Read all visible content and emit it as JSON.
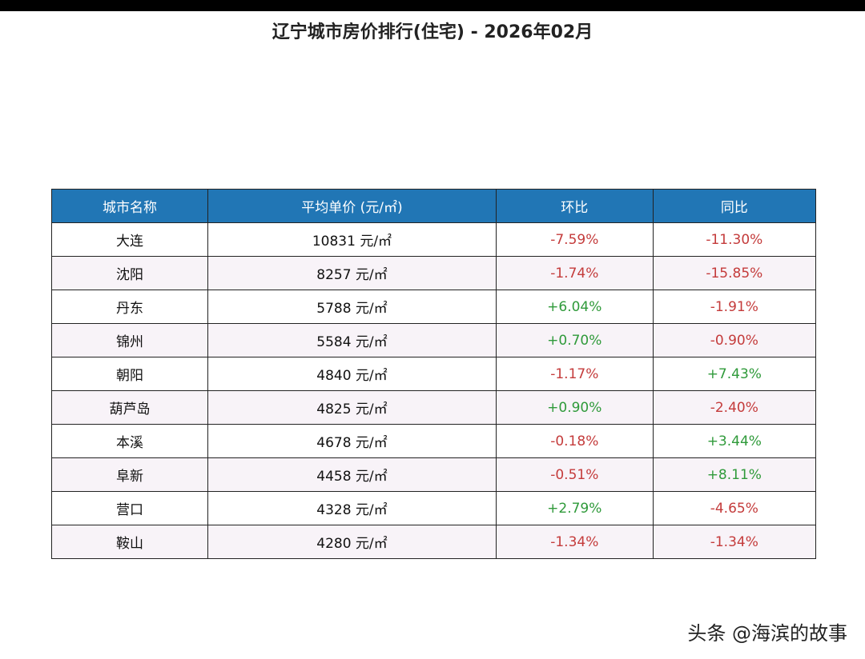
{
  "title": "辽宁城市房价排行(住宅) - 2026年02月",
  "table": {
    "header": [
      "城市名称",
      "平均单价 (元/㎡)",
      "环比",
      "同比"
    ],
    "rows": [
      [
        "大连",
        "10831 元/㎡",
        "-7.59%",
        "-11.30%"
      ],
      [
        "沈阳",
        "8257 元/㎡",
        "-1.74%",
        "-15.85%"
      ],
      [
        "丹东",
        "5788 元/㎡",
        "+6.04%",
        "-1.91%"
      ],
      [
        "锦州",
        "5584 元/㎡",
        "+0.70%",
        "-0.90%"
      ],
      [
        "朝阳",
        "4840 元/㎡",
        "-1.17%",
        "+7.43%"
      ],
      [
        "葫芦岛",
        "4825 元/㎡",
        "+0.90%",
        "-2.40%"
      ],
      [
        "本溪",
        "4678 元/㎡",
        "-0.18%",
        "+3.44%"
      ],
      [
        "阜新",
        "4458 元/㎡",
        "-0.51%",
        "+8.11%"
      ],
      [
        "营口",
        "4328 元/㎡",
        "+2.79%",
        "-4.65%"
      ],
      [
        "鞍山",
        "4280 元/㎡",
        "-1.34%",
        "-1.34%"
      ]
    ]
  },
  "watermark": "头条 @海滨的故事"
}
